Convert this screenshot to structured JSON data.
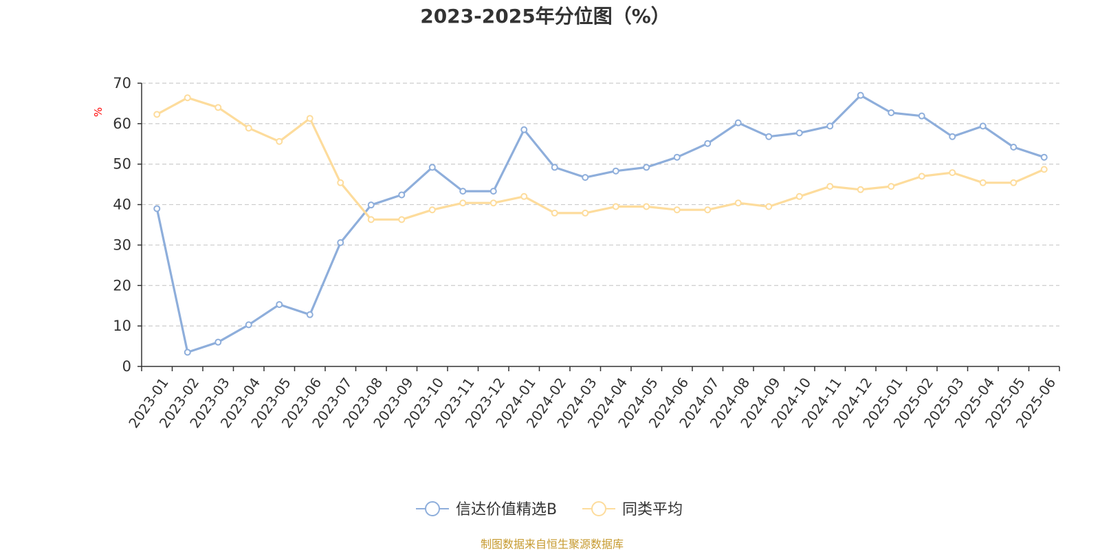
{
  "chart_data": {
    "type": "line",
    "title": "2023-2025年分位图（%）",
    "ylabel": "%",
    "ylim": [
      0,
      70
    ],
    "yticks": [
      0,
      10,
      20,
      30,
      40,
      50,
      60,
      70
    ],
    "grid": true,
    "legend_position": "bottom",
    "categories": [
      "2023-01",
      "2023-02",
      "2023-03",
      "2023-04",
      "2023-05",
      "2023-06",
      "2023-07",
      "2023-08",
      "2023-09",
      "2023-10",
      "2023-11",
      "2023-12",
      "2024-01",
      "2024-02",
      "2024-03",
      "2024-04",
      "2024-05",
      "2024-06",
      "2024-07",
      "2024-08",
      "2024-09",
      "2024-10",
      "2024-11",
      "2024-12",
      "2025-01",
      "2025-02",
      "2025-03",
      "2025-04",
      "2025-05",
      "2025-06"
    ],
    "series": [
      {
        "name": "信达价值精选B",
        "color": "#8eaedb",
        "values": [
          39.0,
          3.5,
          6.0,
          10.3,
          15.3,
          12.8,
          30.6,
          39.9,
          42.4,
          49.2,
          43.3,
          43.3,
          58.5,
          49.2,
          46.7,
          48.3,
          49.2,
          51.7,
          55.1,
          60.2,
          56.8,
          57.7,
          59.4,
          67.0,
          62.7,
          61.9,
          56.8,
          59.4,
          54.2,
          51.7
        ]
      },
      {
        "name": "同类平均",
        "color": "#fddc9c",
        "values": [
          62.3,
          66.4,
          64.0,
          58.9,
          55.6,
          61.3,
          45.4,
          36.3,
          36.3,
          38.7,
          40.4,
          40.4,
          42.0,
          37.9,
          37.9,
          39.5,
          39.5,
          38.7,
          38.7,
          40.4,
          39.5,
          42.0,
          44.5,
          43.7,
          44.5,
          47.0,
          47.9,
          45.4,
          45.4,
          48.7
        ]
      }
    ]
  },
  "colors": {
    "axis": "#333333",
    "grid": "#cccccc",
    "unit_label": "#ff0000",
    "source": "#c69a2f"
  },
  "source_note": "制图数据来自恒生聚源数据库"
}
